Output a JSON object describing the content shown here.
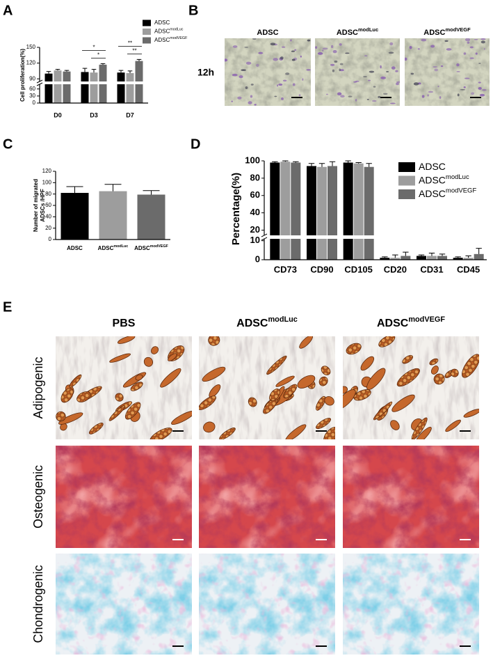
{
  "panel_labels": [
    "A",
    "B",
    "C",
    "D",
    "E"
  ],
  "chart_data": [
    {
      "type": "bar",
      "ylabel": "Cell proliferation(%)",
      "categories": [
        "D0",
        "D3",
        "D7"
      ],
      "series": [
        {
          "name": {
            "base": "ADSC"
          },
          "color": "#000000",
          "values": [
            100,
            103,
            102
          ],
          "errors": [
            4,
            7,
            4
          ]
        },
        {
          "name": {
            "base": "ADSC",
            "sup": "modLuc"
          },
          "color": "#9d9d9d",
          "values": [
            106,
            102,
            101
          ],
          "errors": [
            2,
            6,
            4
          ]
        },
        {
          "name": {
            "base": "ADSC",
            "sup": "modVEGF"
          },
          "color": "#6b6b6b",
          "values": [
            104,
            117,
            124
          ],
          "errors": [
            2,
            2,
            3
          ]
        }
      ],
      "ylim": [
        0,
        150
      ],
      "yticks": [
        0,
        30,
        60,
        90,
        120,
        150
      ],
      "ybreak": [
        80,
        85
      ],
      "annotations": [
        {
          "text": "*",
          "category": 1,
          "from": 0,
          "to": 2
        },
        {
          "text": "*",
          "category": 1,
          "from": 1,
          "to": 2
        },
        {
          "text": "**",
          "category": 2,
          "from": 0,
          "to": 2
        },
        {
          "text": "**",
          "category": 2,
          "from": 1,
          "to": 2
        }
      ]
    },
    {
      "type": "bar",
      "ylabel": [
        "Number of  migrated",
        "ADSCs /HPF"
      ],
      "categories": [
        {
          "base": "ADSC"
        },
        {
          "base": "ADSC",
          "sup": "modLuc"
        },
        {
          "base": "ADSC",
          "sup": "modVEGF"
        }
      ],
      "values": [
        82,
        85,
        79
      ],
      "errors": [
        11,
        12,
        7
      ],
      "colors": [
        "#000000",
        "#9d9d9d",
        "#6b6b6b"
      ],
      "ylim": [
        0,
        120
      ],
      "yticks": [
        0,
        20,
        40,
        60,
        80,
        100,
        120
      ]
    },
    {
      "type": "bar",
      "ylabel": "Percentage(%)",
      "categories": [
        "CD73",
        "CD90",
        "CD105",
        "CD20",
        "CD31",
        "CD45"
      ],
      "series": [
        {
          "name": {
            "base": "ADSC"
          },
          "color": "#000000",
          "values": [
            98,
            94,
            98,
            1,
            2,
            1
          ],
          "errors": [
            1,
            3,
            2,
            0.5,
            0.5,
            0.5
          ]
        },
        {
          "name": {
            "base": "ADSC",
            "sup": "modLuc"
          },
          "color": "#9d9d9d",
          "values": [
            99,
            93,
            97,
            1,
            2,
            1
          ],
          "errors": [
            1,
            4,
            1,
            1.5,
            1.5,
            1
          ]
        },
        {
          "name": {
            "base": "ADSC",
            "sup": "modVEGF"
          },
          "color": "#6b6b6b",
          "values": [
            98,
            94,
            93,
            2,
            2,
            3
          ],
          "errors": [
            1,
            5,
            4,
            2,
            1,
            3
          ]
        }
      ],
      "ylim": [
        0,
        100
      ],
      "yticks": [
        0,
        10,
        20,
        40,
        60,
        80,
        100
      ],
      "ybreak": [
        11,
        14
      ],
      "legend": "right"
    }
  ],
  "migration": {
    "row_label": "12h",
    "columns": [
      {
        "base": "ADSC"
      },
      {
        "base": "ADSC",
        "sup": "modLuc"
      },
      {
        "base": "ADSC",
        "sup": "modVEGF"
      }
    ]
  },
  "differentiation": {
    "columns": [
      {
        "base": "PBS"
      },
      {
        "base": "ADSC",
        "sup": "modLuc"
      },
      {
        "base": "ADSC",
        "sup": "modVEGF"
      }
    ],
    "rows": [
      "Adipogenic",
      "Osteogenic",
      "Chondrogenic"
    ]
  }
}
